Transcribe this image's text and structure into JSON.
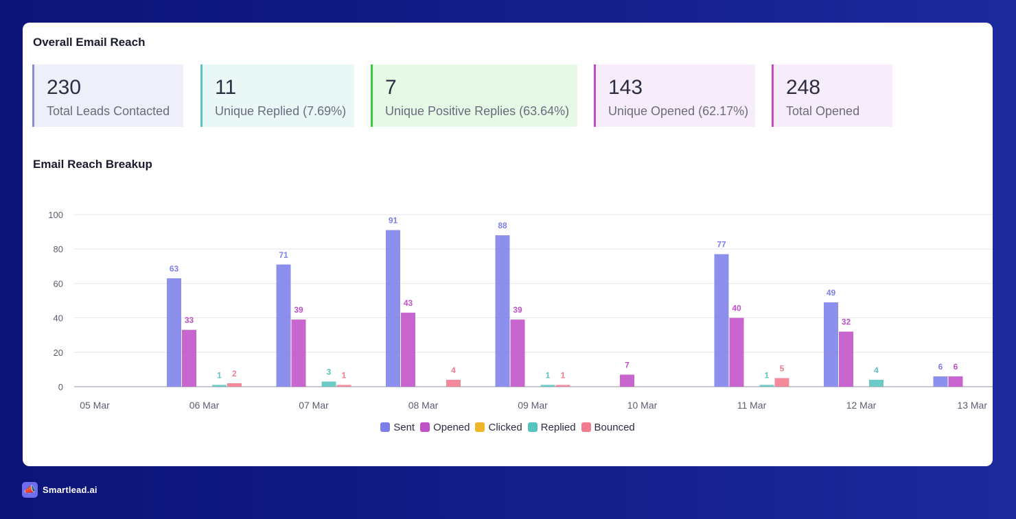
{
  "overview": {
    "title": "Overall Email Reach",
    "stats": [
      {
        "value": "230",
        "label": "Total Leads Contacted",
        "bg": "#eeeff9",
        "accent": "#8a8cd8"
      },
      {
        "value": "11",
        "label": "Unique Replied (7.69%)",
        "bg": "#eaf7f7",
        "accent": "#58c4bf"
      },
      {
        "value": "7",
        "label": "Unique Positive Replies (63.64%)",
        "bg": "#e6f9e6",
        "accent": "#3cc93c"
      },
      {
        "value": "143",
        "label": "Unique Opened (62.17%)",
        "bg": "#f7ecf9",
        "accent": "#c24fc7"
      },
      {
        "value": "248",
        "label": "Total Opened",
        "bg": "#f7ecf9",
        "accent": "#c24fc7"
      }
    ]
  },
  "breakup": {
    "title": "Email Reach Breakup"
  },
  "chart_data": {
    "type": "bar",
    "categories": [
      "05 Mar",
      "06 Mar",
      "07 Mar",
      "08 Mar",
      "09 Mar",
      "10 Mar",
      "11 Mar",
      "12 Mar",
      "13 Mar"
    ],
    "ylim": [
      0,
      100
    ],
    "yticks": [
      0,
      20,
      40,
      60,
      80,
      100
    ],
    "grid": true,
    "legend_position": "bottom",
    "series": [
      {
        "name": "Sent",
        "color": "#7c7fe8",
        "values": [
          0,
          63,
          71,
          91,
          88,
          0,
          77,
          49,
          6
        ]
      },
      {
        "name": "Opened",
        "color": "#c050c8",
        "values": [
          0,
          33,
          39,
          43,
          39,
          7,
          40,
          32,
          6
        ]
      },
      {
        "name": "Clicked",
        "color": "#f0b429",
        "values": [
          0,
          0,
          0,
          0,
          0,
          0,
          0,
          0,
          0
        ]
      },
      {
        "name": "Replied",
        "color": "#58c4bf",
        "values": [
          0,
          1,
          3,
          0,
          1,
          0,
          1,
          4,
          0
        ]
      },
      {
        "name": "Bounced",
        "color": "#f07a8e",
        "values": [
          0,
          2,
          1,
          4,
          1,
          0,
          5,
          0,
          0
        ]
      }
    ]
  },
  "brand": {
    "name": "Smartlead.ai",
    "icon": "megaphone-icon"
  }
}
